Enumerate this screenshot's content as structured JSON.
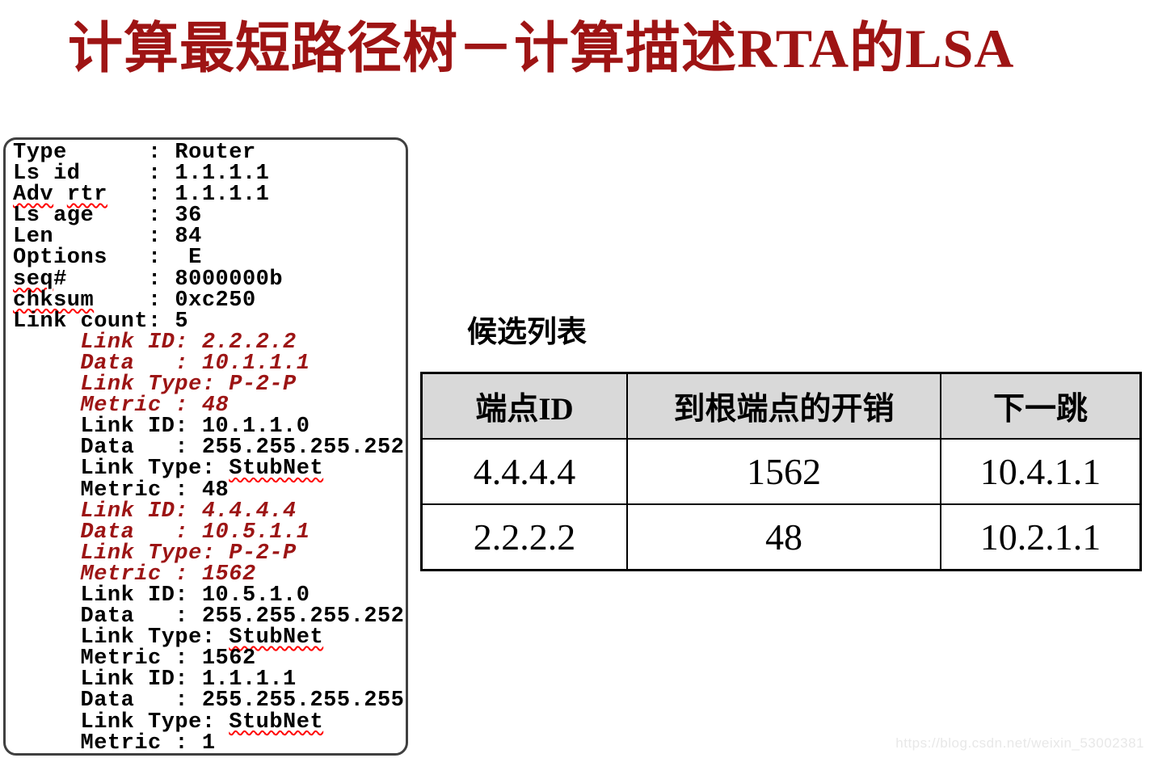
{
  "title": "计算最短路径树－计算描述RTA的LSA",
  "lsa_panel": {
    "lines": [
      {
        "color": "black",
        "segments": [
          {
            "text": "Type      : Router"
          }
        ]
      },
      {
        "color": "black",
        "segments": [
          {
            "text": "Ls id     : 1.1.1.1"
          }
        ]
      },
      {
        "color": "black",
        "segments": [
          {
            "text": "Adv",
            "squiggle": true
          },
          {
            "text": " "
          },
          {
            "text": "rtr",
            "squiggle": true
          },
          {
            "text": "   : 1.1.1.1"
          }
        ]
      },
      {
        "color": "black",
        "segments": [
          {
            "text": "Ls age    : 36"
          }
        ]
      },
      {
        "color": "black",
        "segments": [
          {
            "text": "Len       : 84"
          }
        ]
      },
      {
        "color": "black",
        "segments": [
          {
            "text": "Options   :  E"
          }
        ]
      },
      {
        "color": "black",
        "segments": [
          {
            "text": "seq",
            "squiggle": true
          },
          {
            "text": "#      : 8000000b"
          }
        ]
      },
      {
        "color": "black",
        "segments": [
          {
            "text": "chksum",
            "squiggle": true
          },
          {
            "text": "    : 0xc250"
          }
        ]
      },
      {
        "color": "black",
        "segments": [
          {
            "text": "Link count: 5"
          }
        ]
      },
      {
        "color": "red",
        "segments": [
          {
            "text": "     Link ID: 2.2.2.2"
          }
        ]
      },
      {
        "color": "red",
        "segments": [
          {
            "text": "     Data   : 10.1.1.1"
          }
        ]
      },
      {
        "color": "red",
        "segments": [
          {
            "text": "     Link Type: P-2-P"
          }
        ]
      },
      {
        "color": "red",
        "segments": [
          {
            "text": "     Metric : 48"
          }
        ]
      },
      {
        "color": "black",
        "segments": [
          {
            "text": "     Link ID: 10.1.1.0"
          }
        ]
      },
      {
        "color": "black",
        "segments": [
          {
            "text": "     Data   : 255.255.255.252"
          }
        ]
      },
      {
        "color": "black",
        "segments": [
          {
            "text": "     Link Type: "
          },
          {
            "text": "StubNet",
            "squiggle": true
          }
        ]
      },
      {
        "color": "black",
        "segments": [
          {
            "text": "     Metric : 48"
          }
        ]
      },
      {
        "color": "red",
        "segments": [
          {
            "text": "     Link ID: 4.4.4.4"
          }
        ]
      },
      {
        "color": "red",
        "segments": [
          {
            "text": "     Data   : 10.5.1.1"
          }
        ]
      },
      {
        "color": "red",
        "segments": [
          {
            "text": "     Link Type: P-2-P"
          }
        ]
      },
      {
        "color": "red",
        "segments": [
          {
            "text": "     Metric : 1562"
          }
        ]
      },
      {
        "color": "black",
        "segments": [
          {
            "text": "     Link ID: 10.5.1.0"
          }
        ]
      },
      {
        "color": "black",
        "segments": [
          {
            "text": "     Data   : 255.255.255.252"
          }
        ]
      },
      {
        "color": "black",
        "segments": [
          {
            "text": "     Link Type: "
          },
          {
            "text": "StubNet",
            "squiggle": true
          }
        ]
      },
      {
        "color": "black",
        "segments": [
          {
            "text": "     Metric : 1562"
          }
        ]
      },
      {
        "color": "black",
        "segments": [
          {
            "text": "     Link ID: 1.1.1.1"
          }
        ]
      },
      {
        "color": "black",
        "segments": [
          {
            "text": "     Data   : 255.255.255.255"
          }
        ]
      },
      {
        "color": "black",
        "segments": [
          {
            "text": "     Link Type: "
          },
          {
            "text": "StubNet",
            "squiggle": true
          }
        ]
      },
      {
        "color": "black",
        "segments": [
          {
            "text": "     Metric : 1"
          }
        ]
      }
    ]
  },
  "candidate": {
    "label": "候选列表",
    "table": {
      "columns": [
        "端点ID",
        "到根端点的开销",
        "下一跳"
      ],
      "rows": [
        [
          "4.4.4.4",
          "1562",
          "10.4.1.1"
        ],
        [
          "2.2.2.2",
          "48",
          "10.2.1.1"
        ]
      ]
    }
  },
  "watermark": "https://blog.csdn.net/weixin_53002381",
  "colors": {
    "title_red": "#9e1414",
    "console_red": "#9c1414",
    "squiggle_red": "#ff0000",
    "table_header_bg": "#d9d9d9",
    "border_black": "#000000"
  }
}
